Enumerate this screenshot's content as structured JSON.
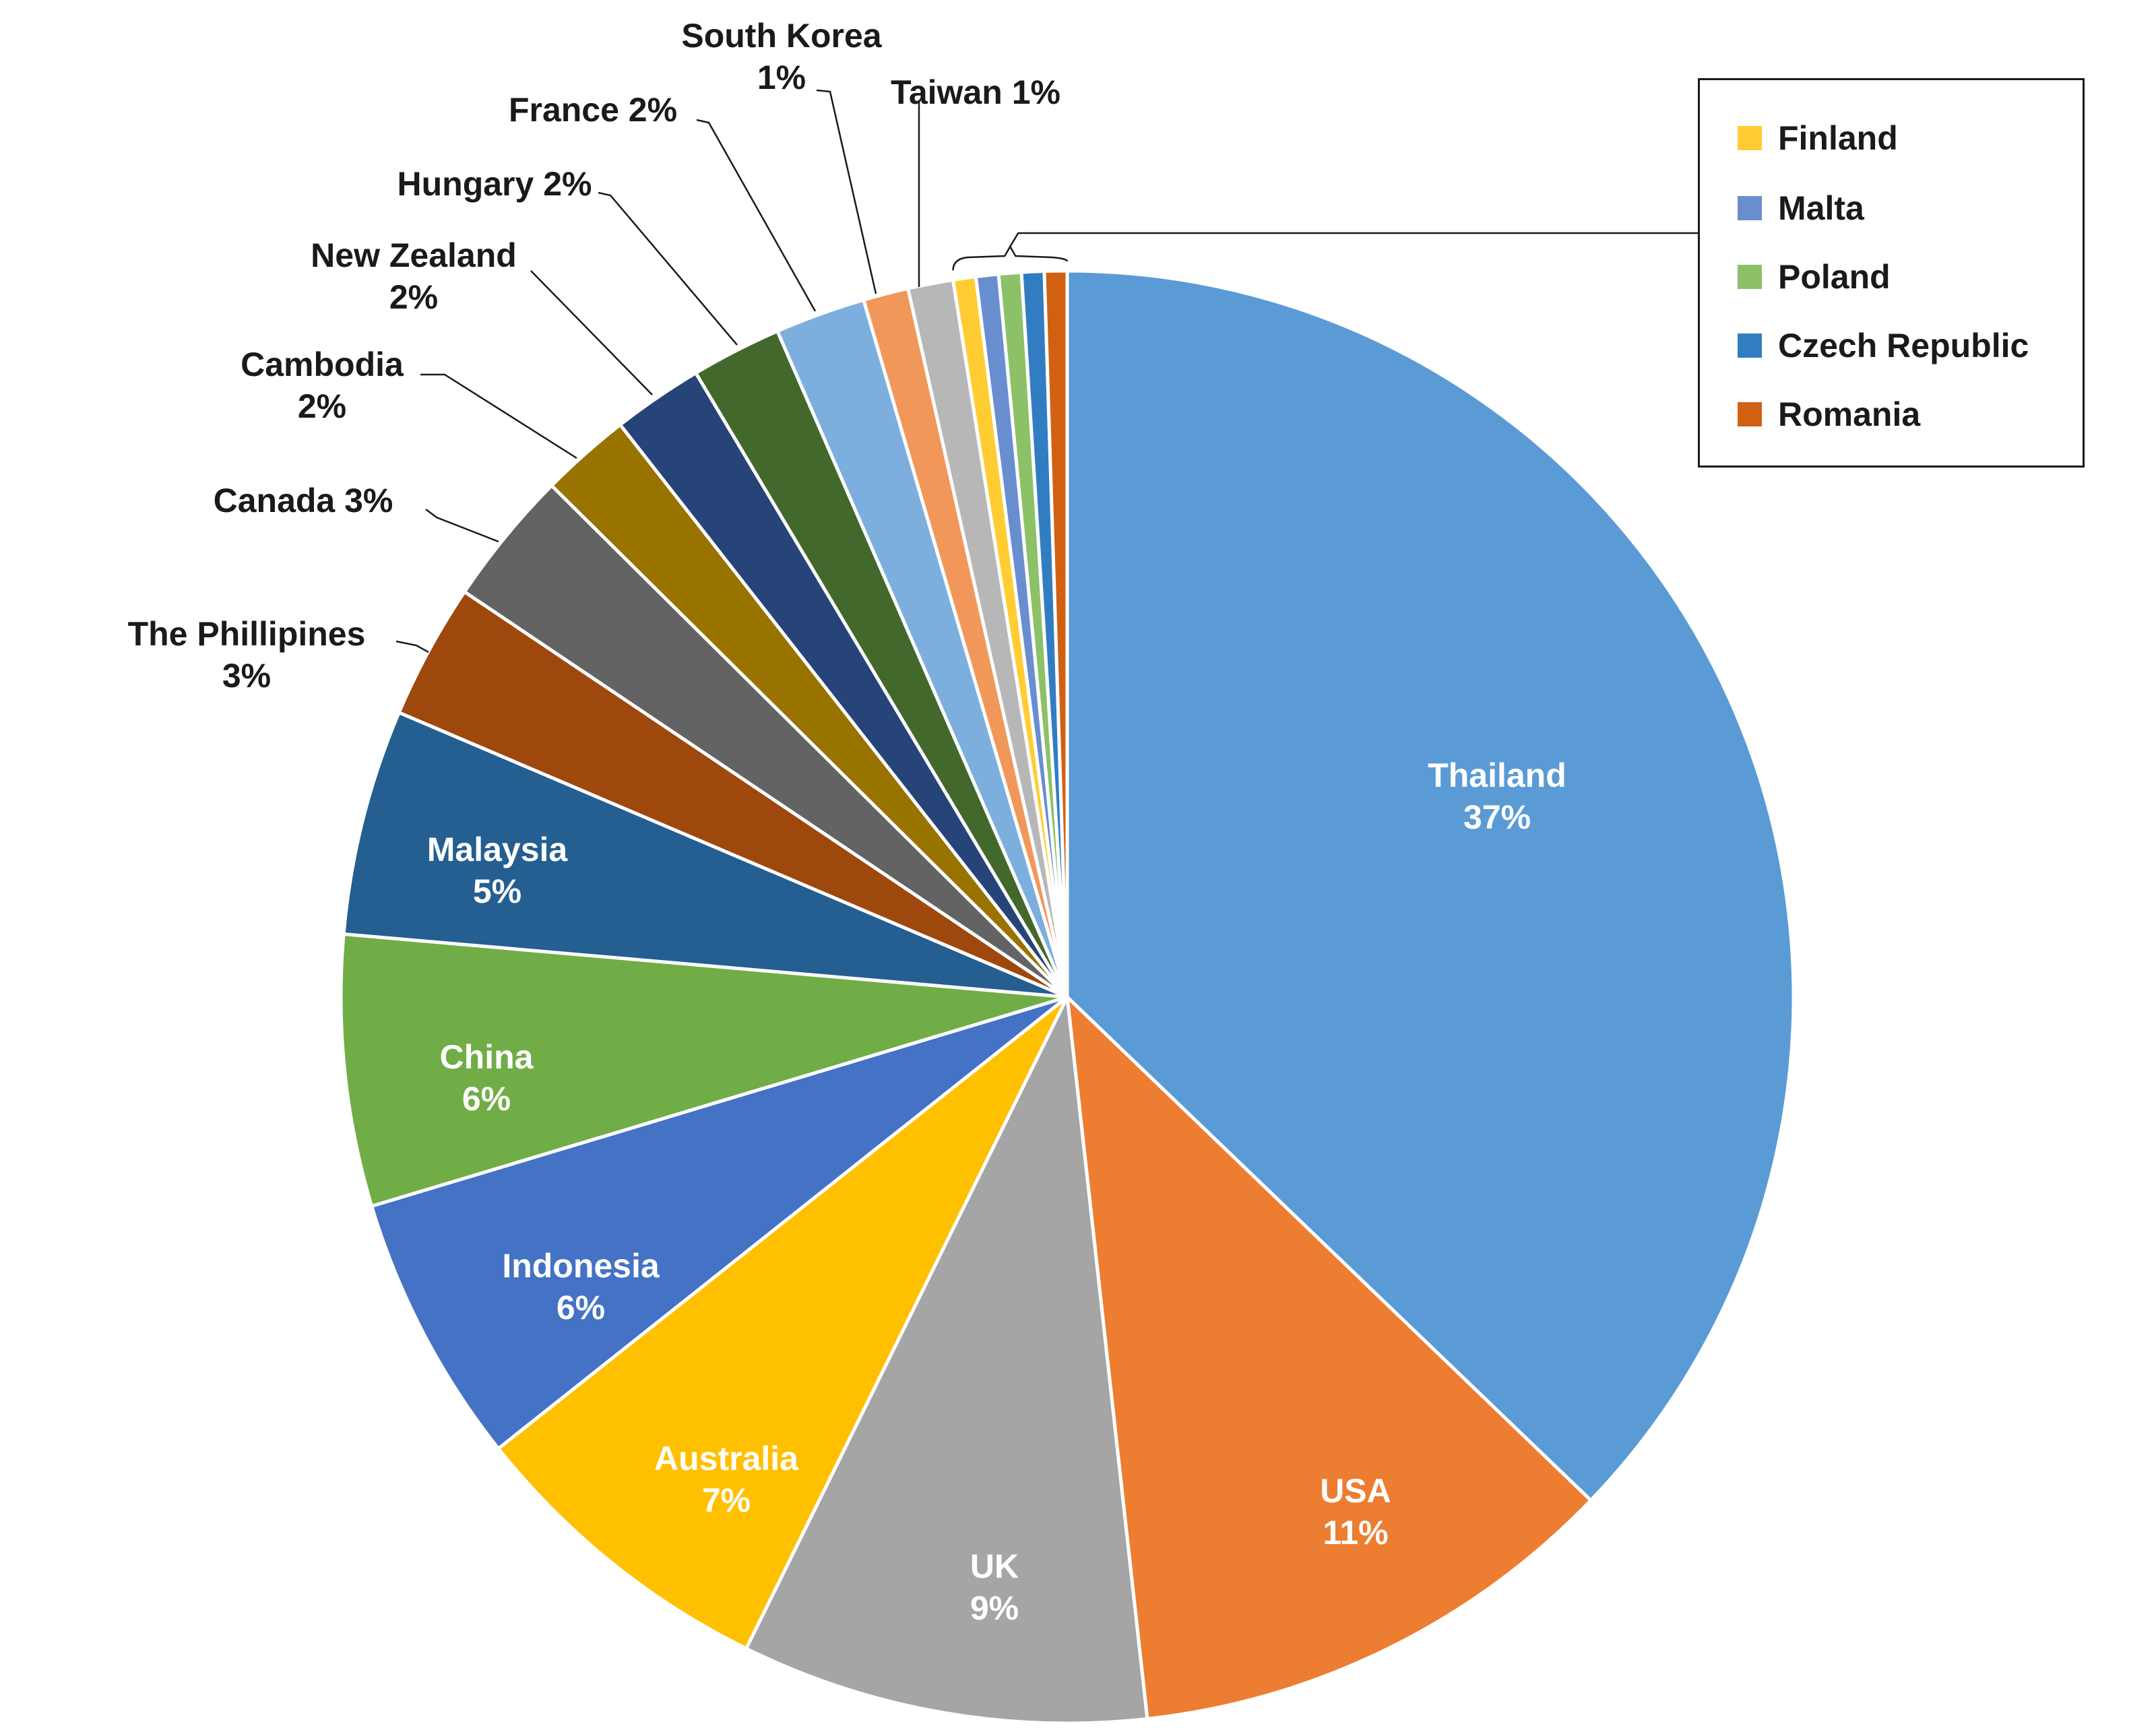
{
  "chart_data": {
    "type": "pie",
    "title": "",
    "start_angle_deg": 0,
    "direction": "clockwise",
    "slices": [
      {
        "label": "Thailand",
        "value": 37,
        "color": "#5B9BD5",
        "label_text": "37%"
      },
      {
        "label": "USA",
        "value": 11,
        "color": "#ED7D31",
        "label_text": "11%"
      },
      {
        "label": "UK",
        "value": 9,
        "color": "#A5A5A5",
        "label_text": "9%"
      },
      {
        "label": "Australia",
        "value": 7,
        "color": "#FFC000",
        "label_text": "7%"
      },
      {
        "label": "Indonesia",
        "value": 6,
        "color": "#4472C4",
        "label_text": "6%"
      },
      {
        "label": "China",
        "value": 6,
        "color": "#70AD47",
        "label_text": "6%"
      },
      {
        "label": "Malaysia",
        "value": 5,
        "color": "#255E91",
        "label_text": "5%"
      },
      {
        "label": "The Phillipines",
        "value": 3,
        "color": "#9E480E",
        "label_text": "3%"
      },
      {
        "label": "Canada",
        "value": 3,
        "color": "#636363",
        "label_text": "3%"
      },
      {
        "label": "Cambodia",
        "value": 2,
        "color": "#997300",
        "label_text": "2%"
      },
      {
        "label": "New Zealand",
        "value": 2,
        "color": "#264478",
        "label_text": "2%"
      },
      {
        "label": "Hungary",
        "value": 2,
        "color": "#43682B",
        "label_text": "2%"
      },
      {
        "label": "France",
        "value": 2,
        "color": "#7CAFDD",
        "label_text": "2%"
      },
      {
        "label": "South Korea",
        "value": 1,
        "color": "#F1975A",
        "label_text": "1%"
      },
      {
        "label": "Taiwan",
        "value": 1,
        "color": "#B7B7B7",
        "label_text": "1%"
      },
      {
        "label": "Finland",
        "value": 0.5,
        "color": "#FFCD33"
      },
      {
        "label": "Malta",
        "value": 0.5,
        "color": "#698ED0"
      },
      {
        "label": "Poland",
        "value": 0.5,
        "color": "#8CC168"
      },
      {
        "label": "Czech Republic",
        "value": 0.5,
        "color": "#327DC2"
      },
      {
        "label": "Romania",
        "value": 0.5,
        "color": "#D26012"
      }
    ],
    "legend": {
      "position": "top-right",
      "entries": [
        "Finland",
        "Malta",
        "Poland",
        "Czech Republic",
        "Romania"
      ]
    }
  }
}
